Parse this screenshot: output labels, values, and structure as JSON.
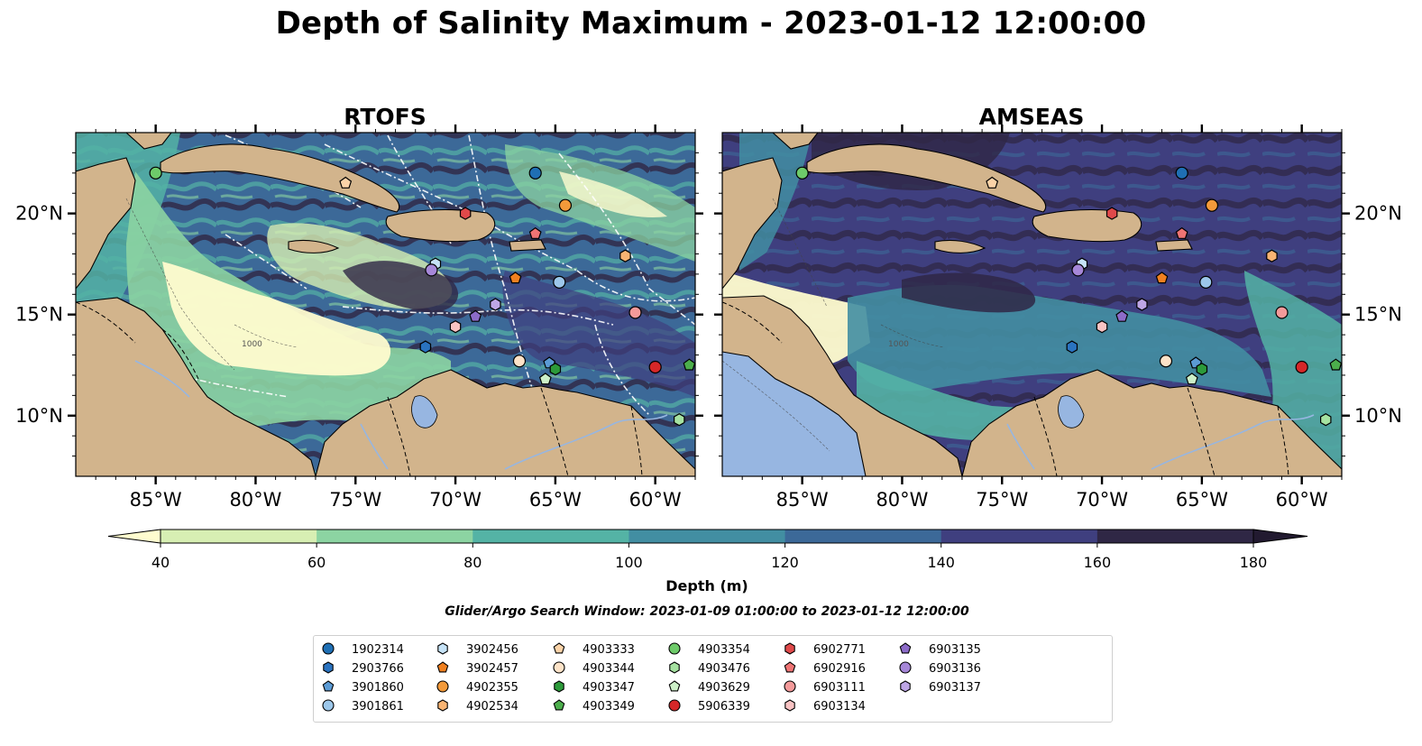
{
  "title": "Depth of Salinity Maximum - 2023-01-12 12:00:00",
  "panels": [
    {
      "title": "RTOFS"
    },
    {
      "title": "AMSEAS"
    }
  ],
  "map": {
    "lon_ticks": [
      "85°W",
      "80°W",
      "75°W",
      "70°W",
      "65°W",
      "60°W"
    ],
    "lat_ticks": [
      "20°N",
      "15°N",
      "10°N"
    ],
    "lon_range": [
      -89,
      -58
    ],
    "lat_range": [
      7,
      24
    ],
    "contour_label": "1000"
  },
  "colorbar": {
    "ticks": [
      "40",
      "60",
      "80",
      "100",
      "120",
      "140",
      "160",
      "180"
    ],
    "colors": [
      "#d7efb3",
      "#8cd4a2",
      "#54b3a5",
      "#428ea2",
      "#3c6998",
      "#3f3f7f",
      "#2f2745"
    ],
    "extend_low_color": "#fffccf",
    "extend_high_color": "#221a30",
    "label": "Depth (m)"
  },
  "search_window": "Glider/Argo Search Window: 2023-01-09 01:00:00 to 2023-01-12 12:00:00",
  "colors": {
    "land": "#d2b48c",
    "water_body": "#97b6e1",
    "river": "#97b6e1"
  },
  "legend": [
    {
      "id": "1902314",
      "marker": "circle",
      "color": "#1f6fb4"
    },
    {
      "id": "2903766",
      "marker": "hexagon",
      "color": "#2a73c0"
    },
    {
      "id": "3901860",
      "marker": "pentagon",
      "color": "#5b9bd5"
    },
    {
      "id": "3901861",
      "marker": "circle",
      "color": "#9cc7ea"
    },
    {
      "id": "3902456",
      "marker": "hexagon",
      "color": "#c6e3f7"
    },
    {
      "id": "3902457",
      "marker": "pentagon",
      "color": "#f08020"
    },
    {
      "id": "4902355",
      "marker": "circle",
      "color": "#f39a3a"
    },
    {
      "id": "4902534",
      "marker": "hexagon",
      "color": "#f8b473"
    },
    {
      "id": "4903333",
      "marker": "pentagon",
      "color": "#fbd3a8"
    },
    {
      "id": "4903344",
      "marker": "circle",
      "color": "#fde3c8"
    },
    {
      "id": "4903347",
      "marker": "hexagon",
      "color": "#2c9a3a"
    },
    {
      "id": "4903349",
      "marker": "pentagon",
      "color": "#4cae4c"
    },
    {
      "id": "4903354",
      "marker": "circle",
      "color": "#6ecb6a"
    },
    {
      "id": "4903476",
      "marker": "hexagon",
      "color": "#a6e2a1"
    },
    {
      "id": "4903629",
      "marker": "pentagon",
      "color": "#cdf0c8"
    },
    {
      "id": "5906339",
      "marker": "circle",
      "color": "#d62728"
    },
    {
      "id": "6902771",
      "marker": "hexagon",
      "color": "#e0494a"
    },
    {
      "id": "6902916",
      "marker": "pentagon",
      "color": "#ef7474"
    },
    {
      "id": "6903111",
      "marker": "circle",
      "color": "#f49a9a"
    },
    {
      "id": "6903134",
      "marker": "hexagon",
      "color": "#f8c3c3"
    },
    {
      "id": "6903135",
      "marker": "pentagon",
      "color": "#8c6bc8"
    },
    {
      "id": "6903136",
      "marker": "circle",
      "color": "#a687d8"
    },
    {
      "id": "6903137",
      "marker": "hexagon",
      "color": "#bea6e6"
    }
  ],
  "floats": [
    {
      "id": "4903354",
      "lon": -85.0,
      "lat": 22.0
    },
    {
      "id": "4903333",
      "lon": -75.5,
      "lat": 21.5
    },
    {
      "id": "1902314",
      "lon": -66.0,
      "lat": 22.0
    },
    {
      "id": "4902355",
      "lon": -64.5,
      "lat": 20.4
    },
    {
      "id": "6902771",
      "lon": -69.5,
      "lat": 20.0
    },
    {
      "id": "6902916",
      "lon": -66.0,
      "lat": 19.0
    },
    {
      "id": "4902534",
      "lon": -61.5,
      "lat": 17.9
    },
    {
      "id": "3902457",
      "lon": -67.0,
      "lat": 16.8
    },
    {
      "id": "3902456",
      "lon": -71.0,
      "lat": 17.5
    },
    {
      "id": "6903136",
      "lon": -71.2,
      "lat": 17.2
    },
    {
      "id": "3901861",
      "lon": -64.8,
      "lat": 16.6
    },
    {
      "id": "6903137",
      "lon": -68.0,
      "lat": 15.5
    },
    {
      "id": "6903111",
      "lon": -61.0,
      "lat": 15.1
    },
    {
      "id": "6903135",
      "lon": -69.0,
      "lat": 14.9
    },
    {
      "id": "6903134",
      "lon": -70.0,
      "lat": 14.4
    },
    {
      "id": "2903766",
      "lon": -71.5,
      "lat": 13.4
    },
    {
      "id": "4903344",
      "lon": -66.8,
      "lat": 12.7
    },
    {
      "id": "3901860",
      "lon": -65.3,
      "lat": 12.6
    },
    {
      "id": "4903347",
      "lon": -65.0,
      "lat": 12.3
    },
    {
      "id": "4903629",
      "lon": -65.5,
      "lat": 11.8
    },
    {
      "id": "5906339",
      "lon": -60.0,
      "lat": 12.4
    },
    {
      "id": "4903349",
      "lon": -58.3,
      "lat": 12.5
    },
    {
      "id": "4903476",
      "lon": -58.8,
      "lat": 9.8
    }
  ]
}
